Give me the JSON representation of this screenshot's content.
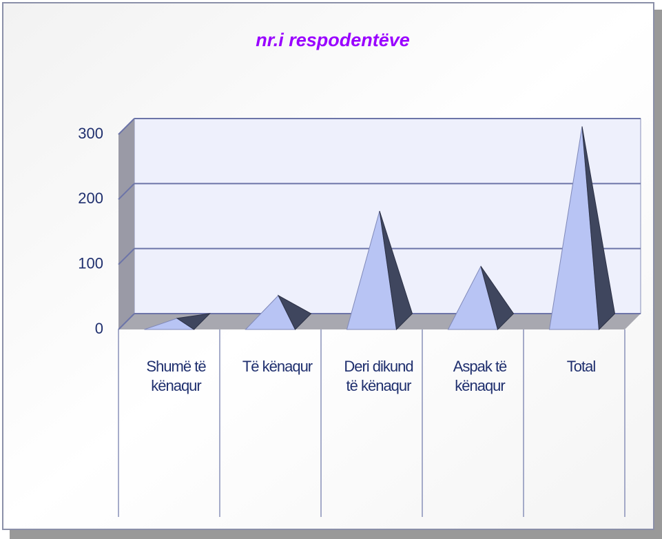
{
  "chart_data": {
    "type": "pyramid3d",
    "title": "nr.i respodentëve",
    "categories": [
      "Shumë të kënaqur",
      "Të kënaqur",
      "Deri dikund të kënaqur",
      "Aspak të kënaqur",
      "Total"
    ],
    "values": [
      5,
      40,
      170,
      85,
      300
    ],
    "color": "#b8c4f4",
    "ylim": [
      0,
      300
    ],
    "yticks": [
      0,
      100,
      200,
      300
    ],
    "grid": true
  }
}
